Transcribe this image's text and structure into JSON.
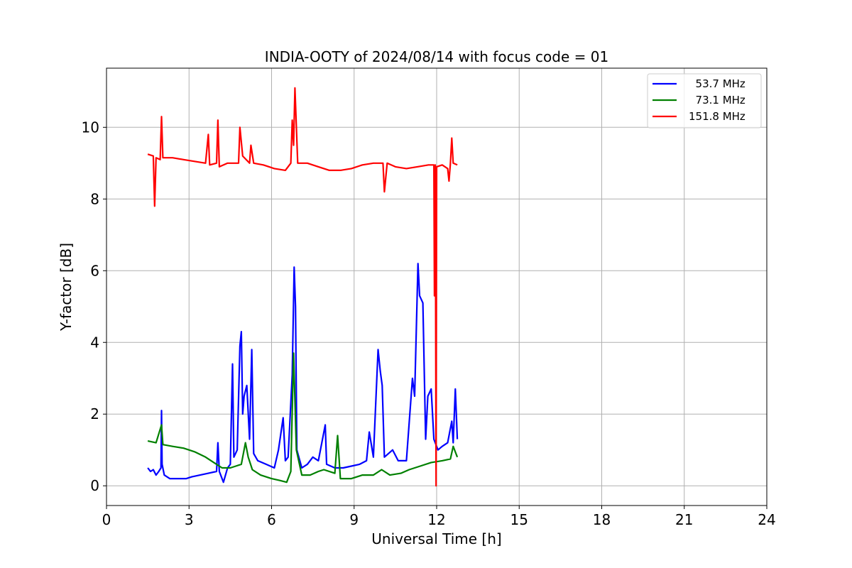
{
  "chart_data": {
    "type": "line",
    "title": "INDIA-OOTY of 2024/08/14 with focus code = 01",
    "xlabel": "Universal Time [h]",
    "ylabel": "Y-factor [dB]",
    "xlim": [
      0,
      24
    ],
    "ylim": [
      -0.55,
      11.65
    ],
    "x_ticks": [
      0,
      3,
      6,
      9,
      12,
      15,
      18,
      21,
      24
    ],
    "x_tick_labels": [
      "0",
      "3",
      "6",
      "9",
      "12",
      "15",
      "18",
      "21",
      "24"
    ],
    "y_ticks": [
      0,
      2,
      4,
      6,
      8,
      10
    ],
    "y_tick_labels": [
      "0",
      "2",
      "4",
      "6",
      "8",
      "10"
    ],
    "grid": true,
    "legend_position": "top-right",
    "series": [
      {
        "name": "  53.7 MHz",
        "color": "#0000ff",
        "points": [
          [
            1.5,
            0.5
          ],
          [
            1.6,
            0.4
          ],
          [
            1.7,
            0.45
          ],
          [
            1.8,
            0.3
          ],
          [
            1.9,
            0.4
          ],
          [
            1.98,
            0.5
          ],
          [
            2.0,
            2.1
          ],
          [
            2.02,
            0.6
          ],
          [
            2.1,
            0.3
          ],
          [
            2.3,
            0.2
          ],
          [
            2.6,
            0.2
          ],
          [
            2.9,
            0.2
          ],
          [
            3.1,
            0.25
          ],
          [
            3.4,
            0.3
          ],
          [
            3.7,
            0.35
          ],
          [
            4.0,
            0.4
          ],
          [
            4.05,
            1.2
          ],
          [
            4.1,
            0.4
          ],
          [
            4.25,
            0.1
          ],
          [
            4.4,
            0.5
          ],
          [
            4.5,
            0.6
          ],
          [
            4.58,
            3.4
          ],
          [
            4.63,
            0.8
          ],
          [
            4.75,
            1.0
          ],
          [
            4.85,
            3.9
          ],
          [
            4.9,
            4.3
          ],
          [
            4.95,
            2.0
          ],
          [
            5.0,
            2.5
          ],
          [
            5.1,
            2.8
          ],
          [
            5.2,
            1.3
          ],
          [
            5.28,
            3.8
          ],
          [
            5.35,
            0.9
          ],
          [
            5.5,
            0.7
          ],
          [
            5.8,
            0.6
          ],
          [
            6.1,
            0.5
          ],
          [
            6.25,
            1.0
          ],
          [
            6.42,
            1.9
          ],
          [
            6.5,
            0.7
          ],
          [
            6.6,
            0.8
          ],
          [
            6.75,
            3.1
          ],
          [
            6.82,
            6.1
          ],
          [
            6.87,
            5.0
          ],
          [
            6.92,
            1.0
          ],
          [
            7.1,
            0.5
          ],
          [
            7.3,
            0.6
          ],
          [
            7.5,
            0.8
          ],
          [
            7.7,
            0.7
          ],
          [
            7.95,
            1.7
          ],
          [
            8.0,
            0.6
          ],
          [
            8.3,
            0.5
          ],
          [
            8.6,
            0.5
          ],
          [
            8.9,
            0.55
          ],
          [
            9.2,
            0.6
          ],
          [
            9.45,
            0.7
          ],
          [
            9.55,
            1.5
          ],
          [
            9.7,
            0.8
          ],
          [
            9.87,
            3.8
          ],
          [
            9.95,
            3.2
          ],
          [
            10.02,
            2.8
          ],
          [
            10.1,
            0.8
          ],
          [
            10.4,
            1.0
          ],
          [
            10.6,
            0.7
          ],
          [
            10.9,
            0.7
          ],
          [
            11.12,
            3.0
          ],
          [
            11.2,
            2.5
          ],
          [
            11.32,
            6.2
          ],
          [
            11.38,
            5.3
          ],
          [
            11.5,
            5.1
          ],
          [
            11.6,
            1.3
          ],
          [
            11.68,
            2.5
          ],
          [
            11.8,
            2.7
          ],
          [
            11.9,
            1.3
          ],
          [
            12.05,
            1.0
          ],
          [
            12.2,
            1.1
          ],
          [
            12.4,
            1.2
          ],
          [
            12.55,
            1.8
          ],
          [
            12.6,
            1.2
          ],
          [
            12.68,
            2.7
          ],
          [
            12.75,
            1.3
          ]
        ]
      },
      {
        "name": "  73.1 MHz",
        "color": "#008000",
        "points": [
          [
            1.5,
            1.25
          ],
          [
            1.8,
            1.2
          ],
          [
            2.0,
            1.7
          ],
          [
            2.05,
            1.15
          ],
          [
            2.4,
            1.1
          ],
          [
            2.8,
            1.05
          ],
          [
            3.2,
            0.95
          ],
          [
            3.6,
            0.8
          ],
          [
            3.9,
            0.65
          ],
          [
            4.2,
            0.5
          ],
          [
            4.5,
            0.5
          ],
          [
            4.7,
            0.55
          ],
          [
            4.9,
            0.6
          ],
          [
            5.05,
            1.2
          ],
          [
            5.15,
            0.8
          ],
          [
            5.3,
            0.45
          ],
          [
            5.6,
            0.3
          ],
          [
            6.0,
            0.2
          ],
          [
            6.3,
            0.15
          ],
          [
            6.55,
            0.1
          ],
          [
            6.7,
            0.4
          ],
          [
            6.8,
            3.7
          ],
          [
            6.9,
            1.0
          ],
          [
            7.1,
            0.3
          ],
          [
            7.4,
            0.3
          ],
          [
            7.7,
            0.4
          ],
          [
            7.9,
            0.45
          ],
          [
            8.3,
            0.35
          ],
          [
            8.4,
            1.4
          ],
          [
            8.5,
            0.2
          ],
          [
            8.9,
            0.2
          ],
          [
            9.3,
            0.3
          ],
          [
            9.7,
            0.3
          ],
          [
            10.0,
            0.45
          ],
          [
            10.3,
            0.3
          ],
          [
            10.7,
            0.35
          ],
          [
            11.0,
            0.45
          ],
          [
            11.4,
            0.55
          ],
          [
            11.8,
            0.65
          ],
          [
            12.2,
            0.7
          ],
          [
            12.5,
            0.75
          ],
          [
            12.6,
            1.1
          ],
          [
            12.75,
            0.8
          ]
        ]
      },
      {
        "name": "151.8 MHz",
        "color": "#ff0000",
        "points": [
          [
            1.5,
            9.25
          ],
          [
            1.7,
            9.2
          ],
          [
            1.75,
            7.8
          ],
          [
            1.8,
            9.15
          ],
          [
            1.95,
            9.1
          ],
          [
            2.0,
            10.3
          ],
          [
            2.05,
            9.15
          ],
          [
            2.4,
            9.15
          ],
          [
            2.8,
            9.1
          ],
          [
            3.2,
            9.05
          ],
          [
            3.6,
            9.0
          ],
          [
            3.7,
            9.8
          ],
          [
            3.75,
            8.95
          ],
          [
            4.0,
            9.0
          ],
          [
            4.05,
            10.2
          ],
          [
            4.1,
            8.9
          ],
          [
            4.4,
            9.0
          ],
          [
            4.8,
            9.0
          ],
          [
            4.85,
            10.0
          ],
          [
            4.95,
            9.2
          ],
          [
            5.2,
            9.0
          ],
          [
            5.25,
            9.5
          ],
          [
            5.35,
            9.0
          ],
          [
            5.7,
            8.95
          ],
          [
            6.1,
            8.85
          ],
          [
            6.5,
            8.8
          ],
          [
            6.7,
            9.0
          ],
          [
            6.75,
            10.2
          ],
          [
            6.8,
            9.5
          ],
          [
            6.85,
            11.1
          ],
          [
            6.95,
            9.0
          ],
          [
            7.3,
            9.0
          ],
          [
            7.7,
            8.9
          ],
          [
            8.1,
            8.8
          ],
          [
            8.5,
            8.8
          ],
          [
            8.9,
            8.85
          ],
          [
            9.3,
            8.95
          ],
          [
            9.7,
            9.0
          ],
          [
            10.05,
            9.0
          ],
          [
            10.1,
            8.2
          ],
          [
            10.2,
            9.0
          ],
          [
            10.5,
            8.9
          ],
          [
            10.9,
            8.85
          ],
          [
            11.3,
            8.9
          ],
          [
            11.7,
            8.95
          ],
          [
            11.9,
            8.95
          ],
          [
            11.92,
            5.3
          ],
          [
            11.95,
            8.95
          ],
          [
            11.98,
            0.0
          ],
          [
            12.0,
            8.9
          ],
          [
            12.2,
            8.95
          ],
          [
            12.4,
            8.85
          ],
          [
            12.45,
            8.5
          ],
          [
            12.5,
            9.0
          ],
          [
            12.55,
            9.7
          ],
          [
            12.6,
            9.0
          ],
          [
            12.75,
            8.95
          ]
        ]
      }
    ]
  }
}
